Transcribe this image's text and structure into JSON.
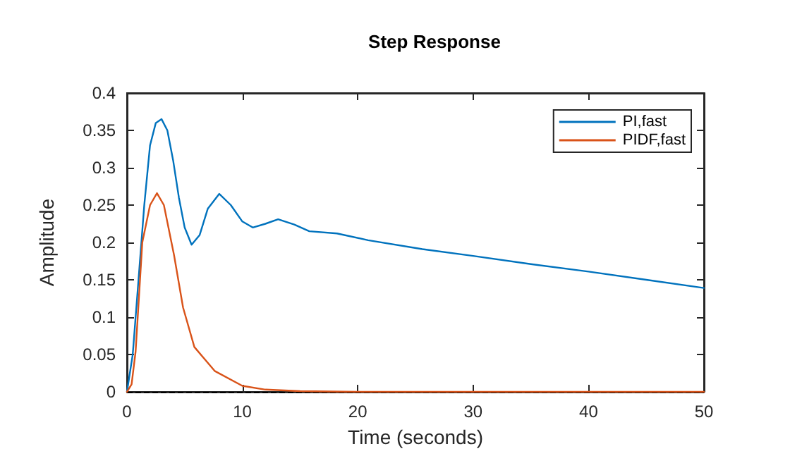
{
  "chart_data": {
    "type": "line",
    "title": "Step Response",
    "xlabel": "Time (seconds)",
    "ylabel": "Amplitude",
    "xlim": [
      0,
      50
    ],
    "xticks": [
      0,
      10,
      20,
      30,
      40,
      50
    ],
    "ylim": [
      0,
      0.4
    ],
    "yticks": [
      0,
      0.05,
      0.1,
      0.15,
      0.2,
      0.25,
      0.3,
      0.35,
      0.4
    ],
    "grid": false,
    "legend": "top right",
    "marker": "none",
    "line_style": "solid",
    "ref_lines": [
      {
        "axis": "y",
        "value": 0,
        "color": "#000000",
        "line_style": "dashed"
      }
    ],
    "series": [
      {
        "name": "PI,fast",
        "color": "#0072bd",
        "x": [
          0,
          0.5,
          1,
          1.5,
          2,
          2.5,
          3,
          3.5,
          4,
          4.5,
          5,
          5.6,
          6.3,
          7,
          8,
          9,
          10,
          10.9,
          12,
          13.1,
          14.5,
          15.8,
          18.2,
          20.9,
          25.6,
          30,
          35,
          40,
          45,
          50
        ],
        "values": [
          0,
          0.05,
          0.15,
          0.25,
          0.33,
          0.36,
          0.365,
          0.35,
          0.31,
          0.26,
          0.22,
          0.197,
          0.21,
          0.245,
          0.265,
          0.25,
          0.228,
          0.22,
          0.225,
          0.231,
          0.224,
          0.215,
          0.212,
          0.203,
          0.191,
          0.182,
          0.171,
          0.161,
          0.15,
          0.139
        ]
      },
      {
        "name": "PIDF,fast",
        "color": "#d95319",
        "x": [
          0,
          0.4,
          0.75,
          1.33,
          2,
          2.6,
          3.2,
          4.08,
          4.86,
          5.84,
          7.6,
          10,
          12,
          15,
          20,
          30,
          40,
          50
        ],
        "values": [
          0,
          0.01,
          0.054,
          0.2,
          0.25,
          0.266,
          0.25,
          0.183,
          0.113,
          0.06,
          0.028,
          0.008,
          0.003,
          0.001,
          0,
          0,
          0,
          0
        ]
      }
    ]
  }
}
